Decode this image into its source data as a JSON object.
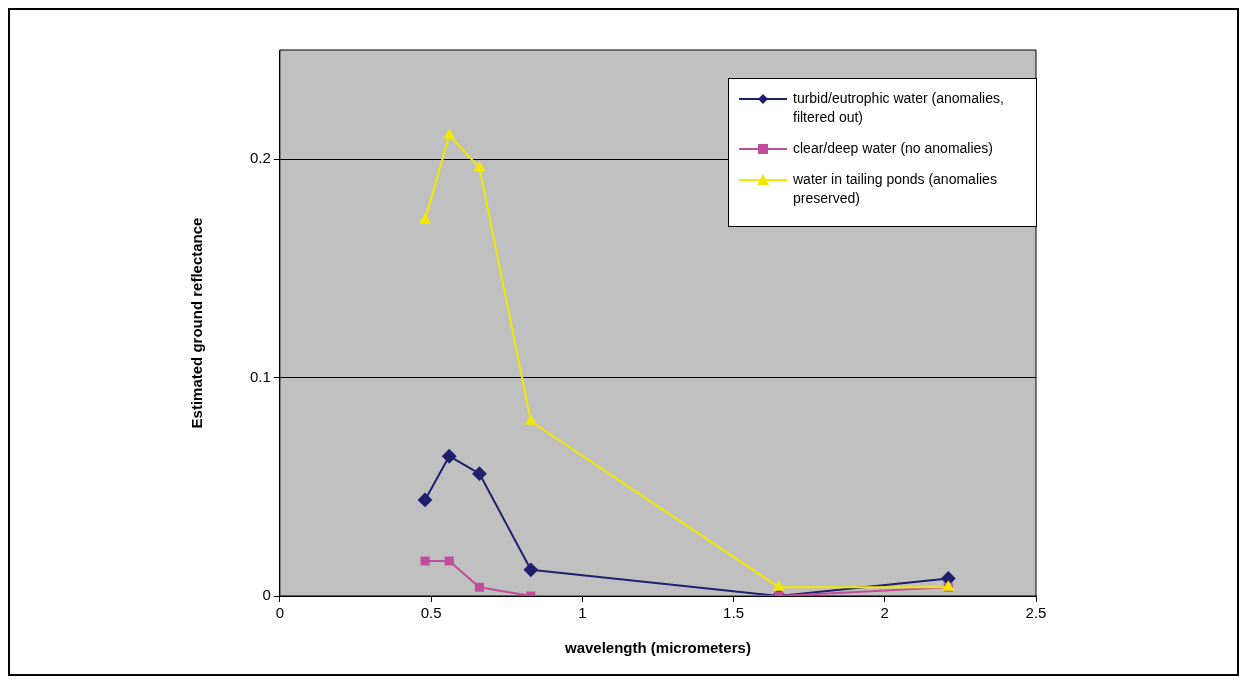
{
  "chart_data": {
    "type": "line",
    "xlabel": "wavelength (micrometers)",
    "ylabel": "Estimated ground reflectance",
    "x": [
      0.48,
      0.56,
      0.66,
      0.83,
      1.65,
      2.21
    ],
    "xlim": [
      0,
      2.5
    ],
    "xticks": [
      0,
      0.5,
      1,
      1.5,
      2,
      2.5
    ],
    "ylim": [
      0,
      0.25
    ],
    "yticks": [
      0,
      0.1,
      0.2
    ],
    "grid": "y",
    "legend": "top right",
    "series": [
      {
        "name": "turbid/eutrophic water (anomalies, filtered out)",
        "color": "#1f1f6e",
        "marker": "diamond",
        "values": [
          0.044,
          0.064,
          0.056,
          0.012,
          0,
          0.008
        ]
      },
      {
        "name": "clear/deep water (no anomalies)",
        "color": "#c04c9c",
        "marker": "square",
        "values": [
          0.016,
          0.016,
          0.004,
          0,
          0,
          0.004
        ]
      },
      {
        "name": "water in tailing ponds (anomalies preserved)",
        "color": "#f0e800",
        "marker": "triangle",
        "values": [
          0.172,
          0.211,
          0.196,
          0.08,
          0.004,
          0.004
        ]
      }
    ]
  }
}
